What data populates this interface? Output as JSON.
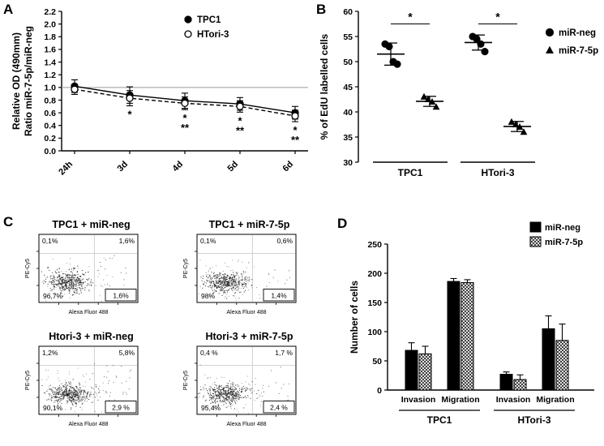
{
  "figure": {
    "panel_labels": {
      "a": "A",
      "b": "B",
      "c": "C",
      "d": "D"
    }
  },
  "chart_data": [
    {
      "id": "panelA",
      "type": "line",
      "ylabel_line1": "Relative OD (490mm)",
      "ylabel_line2": "Ratio miR-7-5p/miR-neg",
      "categories": [
        "24h",
        "3d",
        "4d",
        "5d",
        "6d"
      ],
      "ylim": [
        0,
        2.2
      ],
      "ytick_step": 0.2,
      "reference_line": 1.0,
      "legend_position": "top-right",
      "series": [
        {
          "name": "TPC1",
          "marker": "filled-circle",
          "line": "solid",
          "values": [
            1.02,
            0.88,
            0.79,
            0.74,
            0.6
          ],
          "errors": [
            0.1,
            0.13,
            0.12,
            0.1,
            0.1
          ]
        },
        {
          "name": "HTori-3",
          "marker": "open-circle",
          "line": "dashed",
          "values": [
            0.97,
            0.83,
            0.75,
            0.7,
            0.55
          ],
          "errors": [
            0.08,
            0.12,
            0.1,
            0.09,
            0.09
          ]
        }
      ],
      "significance": [
        {
          "category": "3d",
          "labels": [
            "*"
          ]
        },
        {
          "category": "4d",
          "labels": [
            "*",
            "**"
          ]
        },
        {
          "category": "5d",
          "labels": [
            "*",
            "**"
          ]
        },
        {
          "category": "6d",
          "labels": [
            "*",
            "**"
          ]
        }
      ]
    },
    {
      "id": "panelB",
      "type": "scatter",
      "ylabel": "% of EdU labelled cells",
      "ylim": [
        30,
        60
      ],
      "ytick_step": 5,
      "groups": [
        {
          "label": "TPC1",
          "significance": "*",
          "clusters": [
            {
              "name": "miR-neg",
              "marker": "circle",
              "points": [
                53.5,
                53.0,
                50.0,
                49.5
              ],
              "mean": 51.5,
              "sd": 2.2
            },
            {
              "name": "miR-7-5p",
              "marker": "triangle",
              "points": [
                43.0,
                42.5,
                42.0,
                41.0
              ],
              "mean": 42.1,
              "sd": 1.0
            }
          ]
        },
        {
          "label": "HTori-3",
          "significance": "*",
          "clusters": [
            {
              "name": "miR-neg",
              "marker": "circle",
              "points": [
                55.0,
                54.5,
                53.5,
                52.0
              ],
              "mean": 53.8,
              "sd": 1.5
            },
            {
              "name": "miR-7-5p",
              "marker": "triangle",
              "points": [
                38.0,
                37.5,
                37.0,
                36.0
              ],
              "mean": 37.1,
              "sd": 1.0
            }
          ]
        }
      ],
      "legend": [
        {
          "label": "miR-neg",
          "marker": "circle"
        },
        {
          "label": "miR-7-5p",
          "marker": "triangle"
        }
      ]
    },
    {
      "id": "panelC",
      "type": "scatter",
      "subtype": "flow-cytometry",
      "xlabel": "Alexa Fluor 488",
      "ylabel": "PE-Cy5",
      "plots": [
        {
          "title": "TPC1 + miR-neg",
          "q_top_left": "0,1%",
          "q_top_right": "1,6%",
          "q_bottom_left": "96,7%",
          "boxed": "1,6%"
        },
        {
          "title": "TPC1 + miR-7-5p",
          "q_top_left": "0,1%",
          "q_top_right": "0,6%",
          "q_bottom_left": "98%",
          "boxed": "1,4%"
        },
        {
          "title": "Htori-3 + miR-neg",
          "q_top_left": "1,2%",
          "q_top_right": "5,8%",
          "q_bottom_left": "90,1%",
          "boxed": "2,9 %"
        },
        {
          "title": "Htori-3 + miR-7-5p",
          "q_top_left": "0,4 %",
          "q_top_right": "1,7 %",
          "q_bottom_left": "95,4%",
          "boxed": "2,4 %"
        }
      ]
    },
    {
      "id": "panelD",
      "type": "bar",
      "ylabel": "Number of cells",
      "ylim": [
        0,
        250
      ],
      "ytick_step": 50,
      "series": [
        {
          "name": "miR-neg",
          "fill": "solid-black"
        },
        {
          "name": "miR-7-5p",
          "fill": "hatched"
        }
      ],
      "cell_lines": [
        "TPC1",
        "HTori-3"
      ],
      "groups": [
        {
          "label": "Invasion",
          "cell_line": "TPC1",
          "values": [
            68,
            62
          ],
          "errors": [
            13,
            13
          ]
        },
        {
          "label": "Migration",
          "cell_line": "TPC1",
          "values": [
            186,
            184
          ],
          "errors": [
            5,
            5
          ]
        },
        {
          "label": "Invasion",
          "cell_line": "HTori-3",
          "values": [
            27,
            18
          ],
          "errors": [
            4,
            8
          ]
        },
        {
          "label": "Migration",
          "cell_line": "HTori-3",
          "values": [
            105,
            85
          ],
          "errors": [
            22,
            28
          ]
        }
      ]
    }
  ],
  "colors": {
    "black": "#000000",
    "gray_reference": "#9a9a9a",
    "quadrant_gray": "#c4c4c4"
  }
}
